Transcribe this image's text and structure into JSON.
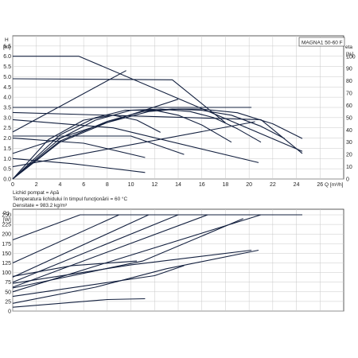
{
  "chart_data": [
    {
      "type": "line",
      "title": "",
      "model_label": "MAGNA1 50-60 F",
      "y_axis_label_top": "H",
      "y_axis_label_unit": "[m]",
      "right_axis_label_top": "eta",
      "right_axis_label_unit": "[%]",
      "x_axis_label": "Q [m³/h]",
      "xlim": [
        0,
        28
      ],
      "ylim": [
        0,
        7
      ],
      "right_ylim": [
        0,
        116.7
      ],
      "x_ticks": [
        "0",
        "2",
        "4",
        "6",
        "8",
        "10",
        "12",
        "14",
        "16",
        "18",
        "20",
        "22",
        "24",
        "26"
      ],
      "y_ticks": [
        "0.0",
        "0.5",
        "1.0",
        "1.5",
        "2.0",
        "2.5",
        "3.0",
        "3.5",
        "4.0",
        "4.5",
        "5.0",
        "5.5",
        "6.0",
        "6.5"
      ],
      "right_ticks": [
        "0",
        "10",
        "20",
        "30",
        "40",
        "50",
        "60",
        "70",
        "80",
        "90",
        "100"
      ],
      "grid": true,
      "fluid_info": [
        "Lichid pompat = Apă",
        "Temperatura lichidului în timpul funcţionării = 60 °C",
        "Densitate = 983.2 kg/m³"
      ],
      "series": [
        {
          "type": "head",
          "x": [
            0,
            5.6,
            24.5
          ],
          "y": [
            6.0,
            6.0,
            1.35
          ]
        },
        {
          "type": "head",
          "x": [
            0,
            20.2
          ],
          "y": [
            3.5,
            3.5
          ]
        },
        {
          "type": "head",
          "x": [
            0,
            21,
            24.5
          ],
          "y": [
            3.25,
            2.9,
            1.25
          ]
        },
        {
          "type": "head",
          "x": [
            0,
            8.5,
            20.8
          ],
          "y": [
            2.9,
            2.5,
            0.8
          ]
        },
        {
          "type": "head",
          "x": [
            0,
            5,
            11.2
          ],
          "y": [
            1.0,
            0.75,
            0.32
          ]
        },
        {
          "type": "head",
          "x": [
            0,
            9.6
          ],
          "y": [
            2.3,
            5.3
          ]
        },
        {
          "type": "head",
          "x": [
            0,
            14
          ],
          "y": [
            1.25,
            3.9
          ]
        },
        {
          "type": "head",
          "x": [
            0,
            20.5
          ],
          "y": [
            0.6,
            2.8
          ]
        },
        {
          "type": "head",
          "x": [
            0,
            13.5,
            18
          ],
          "y": [
            4.9,
            4.85,
            2.75
          ]
        },
        {
          "type": "head",
          "x": [
            0,
            10,
            14.5
          ],
          "y": [
            2.1,
            2.1,
            1.2
          ]
        },
        {
          "type": "head",
          "x": [
            0,
            6,
            11.2
          ],
          "y": [
            2.0,
            1.75,
            1.05
          ]
        },
        {
          "type": "efficiency",
          "x": [
            0,
            4,
            8,
            11.5,
            14,
            16,
            19,
            22,
            24.5
          ],
          "y": [
            0,
            30,
            46,
            55,
            57,
            57,
            54,
            45,
            33
          ]
        },
        {
          "type": "efficiency",
          "x": [
            0,
            4,
            8,
            11,
            13.5,
            16,
            18.5,
            21,
            23
          ],
          "y": [
            0,
            31,
            47,
            55,
            57,
            56,
            52,
            43,
            33
          ]
        },
        {
          "type": "efficiency",
          "x": [
            0,
            4,
            7,
            10,
            12.5,
            15,
            17,
            19,
            21
          ],
          "y": [
            0,
            33,
            48,
            56,
            57,
            55,
            50,
            41,
            30
          ]
        },
        {
          "type": "efficiency",
          "x": [
            0,
            4,
            7,
            9.5,
            12,
            14,
            16,
            18.5
          ],
          "y": [
            0,
            36,
            50,
            56,
            56,
            52,
            44,
            30
          ]
        },
        {
          "type": "efficiency",
          "x": [
            0,
            3,
            6,
            8.5,
            10.5,
            12.5
          ],
          "y": [
            0,
            32,
            48,
            52,
            48,
            38
          ]
        }
      ]
    },
    {
      "type": "line",
      "title": "",
      "y_axis_label_top": "P1",
      "y_axis_label_unit": "[W]",
      "xlim": [
        0,
        28
      ],
      "ylim": [
        0,
        250
      ],
      "y_ticks": [
        "0",
        "25",
        "50",
        "75",
        "100",
        "125",
        "150",
        "175",
        "200",
        "225",
        "250"
      ],
      "grid": true,
      "series": [
        {
          "x": [
            0,
            5.7,
            24.5
          ],
          "y": [
            185,
            250,
            250
          ]
        },
        {
          "x": [
            0,
            9
          ],
          "y": [
            125,
            250
          ]
        },
        {
          "x": [
            0,
            11.5
          ],
          "y": [
            88,
            250
          ]
        },
        {
          "x": [
            0,
            14
          ],
          "y": [
            75,
            250
          ]
        },
        {
          "x": [
            0,
            16.5
          ],
          "y": [
            62,
            250
          ]
        },
        {
          "x": [
            0,
            21
          ],
          "y": [
            50,
            250
          ]
        },
        {
          "x": [
            0,
            11,
            19.5
          ],
          "y": [
            60,
            130,
            240
          ]
        },
        {
          "x": [
            0,
            7,
            13,
            20.8
          ],
          "y": [
            20,
            62,
            110,
            158
          ]
        },
        {
          "x": [
            0,
            10,
            20.2
          ],
          "y": [
            72,
            120,
            158
          ]
        },
        {
          "x": [
            0,
            12,
            14.5
          ],
          "y": [
            38,
            92,
            118
          ]
        },
        {
          "x": [
            0,
            8,
            11.2
          ],
          "y": [
            10,
            30,
            32
          ]
        },
        {
          "x": [
            0,
            5,
            10.5
          ],
          "y": [
            90,
            118,
            130
          ]
        }
      ]
    }
  ]
}
